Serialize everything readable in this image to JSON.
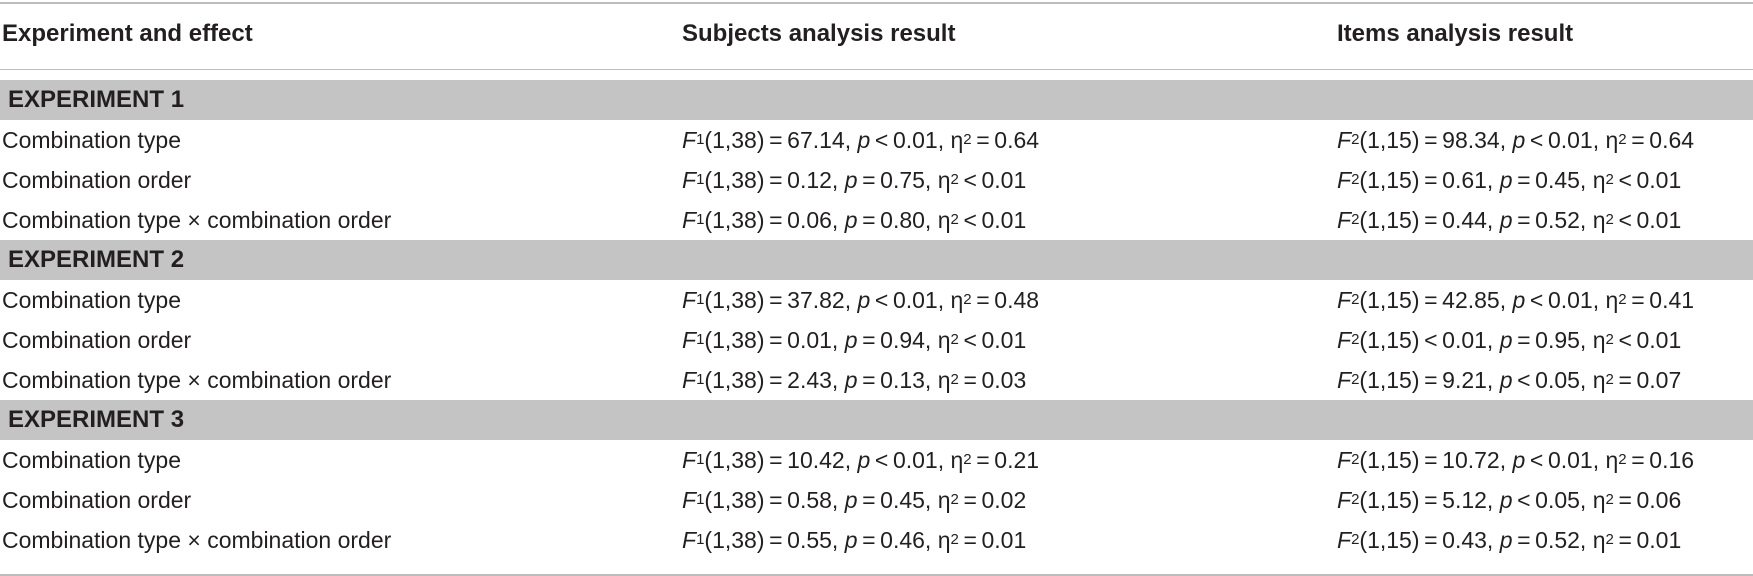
{
  "headers": {
    "col1": "Experiment and effect",
    "col2": "Subjects analysis result",
    "col3": "Items analysis result"
  },
  "stat_symbols": {
    "F": "F",
    "sub1": "1",
    "sub2": "2",
    "df1": "(1,38)",
    "df2": "(1,15)",
    "p": "p",
    "eta": "η",
    "sq": "2",
    "comma": ","
  },
  "experiments": [
    {
      "title": "EXPERIMENT 1",
      "rows": [
        {
          "effect": "Combination type",
          "f1_rel": "=",
          "f1_val": "67.14",
          "p1_rel": "<",
          "p1_val": "0.01",
          "e1_rel": "=",
          "e1_val": "0.64",
          "f2_rel": "=",
          "f2_val": "98.34",
          "p2_rel": "<",
          "p2_val": "0.01",
          "e2_rel": "=",
          "e2_val": "0.64"
        },
        {
          "effect": "Combination order",
          "f1_rel": "=",
          "f1_val": "0.12",
          "p1_rel": "=",
          "p1_val": "0.75",
          "e1_rel": "<",
          "e1_val": "0.01",
          "f2_rel": "=",
          "f2_val": "0.61",
          "p2_rel": "=",
          "p2_val": "0.45",
          "e2_rel": "<",
          "e2_val": "0.01"
        },
        {
          "effect": "Combination type × combination order",
          "f1_rel": "=",
          "f1_val": "0.06",
          "p1_rel": "=",
          "p1_val": "0.80",
          "e1_rel": "<",
          "e1_val": "0.01",
          "f2_rel": "=",
          "f2_val": "0.44",
          "p2_rel": "=",
          "p2_val": "0.52",
          "e2_rel": "<",
          "e2_val": "0.01"
        }
      ]
    },
    {
      "title": "EXPERIMENT 2",
      "rows": [
        {
          "effect": "Combination type",
          "f1_rel": "=",
          "f1_val": "37.82",
          "p1_rel": "<",
          "p1_val": "0.01",
          "e1_rel": "=",
          "e1_val": "0.48",
          "f2_rel": "=",
          "f2_val": "42.85",
          "p2_rel": "<",
          "p2_val": "0.01",
          "e2_rel": "=",
          "e2_val": "0.41"
        },
        {
          "effect": "Combination order",
          "f1_rel": "=",
          "f1_val": "0.01",
          "p1_rel": "=",
          "p1_val": "0.94",
          "e1_rel": "<",
          "e1_val": "0.01",
          "f2_rel": "<",
          "f2_val": "0.01",
          "p2_rel": "=",
          "p2_val": "0.95",
          "e2_rel": "<",
          "e2_val": "0.01"
        },
        {
          "effect": "Combination type × combination order",
          "f1_rel": "=",
          "f1_val": "2.43",
          "p1_rel": "=",
          "p1_val": "0.13",
          "e1_rel": "=",
          "e1_val": "0.03",
          "f2_rel": "=",
          "f2_val": "9.21",
          "p2_rel": "<",
          "p2_val": "0.05",
          "e2_rel": "=",
          "e2_val": "0.07"
        }
      ]
    },
    {
      "title": "EXPERIMENT 3",
      "rows": [
        {
          "effect": "Combination type",
          "f1_rel": "=",
          "f1_val": "10.42",
          "p1_rel": "<",
          "p1_val": "0.01",
          "e1_rel": "=",
          "e1_val": "0.21",
          "f2_rel": "=",
          "f2_val": "10.72",
          "p2_rel": "<",
          "p2_val": "0.01",
          "e2_rel": "=",
          "e2_val": "0.16"
        },
        {
          "effect": "Combination order",
          "f1_rel": "=",
          "f1_val": "0.58",
          "p1_rel": "=",
          "p1_val": "0.45",
          "e1_rel": "=",
          "e1_val": "0.02",
          "f2_rel": "=",
          "f2_val": "5.12",
          "p2_rel": "<",
          "p2_val": "0.05",
          "e2_rel": "=",
          "e2_val": "0.06"
        },
        {
          "effect": "Combination type × combination order",
          "f1_rel": "=",
          "f1_val": "0.55",
          "p1_rel": "=",
          "p1_val": "0.46",
          "e1_rel": "=",
          "e1_val": "0.01",
          "f2_rel": "=",
          "f2_val": "0.43",
          "p2_rel": "=",
          "p2_val": "0.52",
          "e2_rel": "=",
          "e2_val": "0.01"
        }
      ]
    }
  ]
}
